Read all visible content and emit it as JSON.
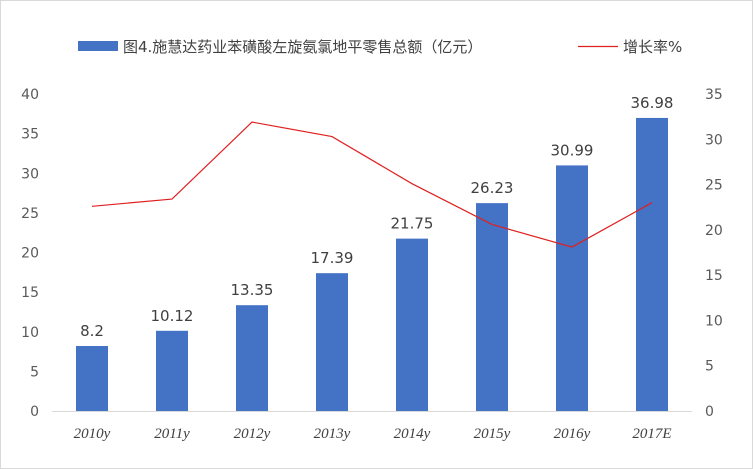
{
  "chart_data": {
    "type": "bar",
    "categories": [
      "2010y",
      "2011y",
      "2012y",
      "2013y",
      "2014y",
      "2015y",
      "2016y",
      "2017E"
    ],
    "series": [
      {
        "name": "图4.施慧达药业苯磺酸左旋氨氯地平零售总额（亿元）",
        "type": "bar",
        "axis": "left",
        "values": [
          8.2,
          10.12,
          13.35,
          17.39,
          21.75,
          26.23,
          30.99,
          36.98
        ],
        "labels": [
          "8.2",
          "10.12",
          "13.35",
          "17.39",
          "21.75",
          "26.23",
          "30.99",
          "36.98"
        ],
        "color": "#4472c4"
      },
      {
        "name": "增长率%",
        "type": "line",
        "axis": "right",
        "values": [
          22.6,
          23.4,
          31.9,
          30.3,
          25.1,
          20.6,
          18.1,
          23.0
        ],
        "color": "#e02020"
      }
    ],
    "y_left": {
      "ylim": [
        0,
        40
      ],
      "ticks": [
        "0",
        "5",
        "10",
        "15",
        "20",
        "25",
        "30",
        "35",
        "40"
      ]
    },
    "y_right": {
      "ylim": [
        0,
        35
      ],
      "ticks": [
        "0",
        "5",
        "10",
        "15",
        "20",
        "25",
        "30",
        "35"
      ]
    },
    "legend": "top",
    "grid": false
  }
}
